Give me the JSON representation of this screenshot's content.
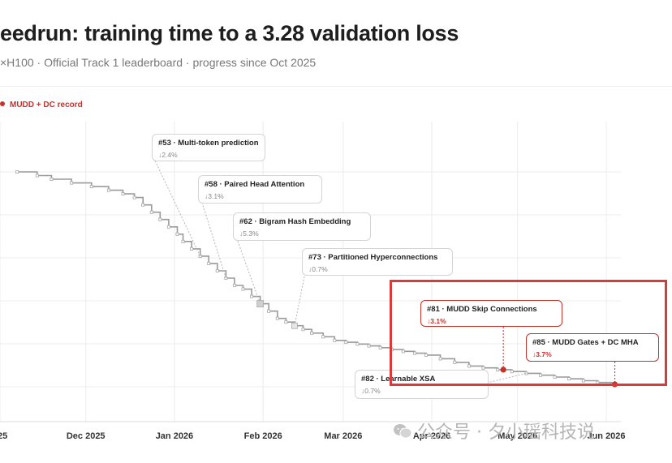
{
  "title": "eedrun: training time to a 3.28 validation loss",
  "subtitle": "×H100 · Official Track 1 leaderboard · progress since Oct 2025",
  "legend": {
    "label": "MUDD + DC record",
    "color": "#c8302a"
  },
  "watermark": "公众号 · 夕小瑶科技说",
  "colors": {
    "line": "#9a9a9a",
    "record": "#c8302a",
    "highlight": "#d93a3a",
    "grid": "#ececec"
  },
  "annotations": [
    {
      "title": "#53 · Multi-token prediction",
      "delta": "↓2.4%",
      "record": false
    },
    {
      "title": "#58 · Paired Head Attention",
      "delta": "↓3.1%",
      "record": false
    },
    {
      "title": "#62 · Bigram Hash Embedding",
      "delta": "↓5.3%",
      "record": false
    },
    {
      "title": "#73 · Partitioned Hyperconnections",
      "delta": "↓0.7%",
      "record": false
    },
    {
      "title": "#81 · MUDD Skip Connections",
      "delta": "↓3.1%",
      "record": true
    },
    {
      "title": "#85 · MUDD Gates + DC MHA",
      "delta": "↓3.7%",
      "record": true
    },
    {
      "title": "#82 · Learnable XSA",
      "delta": "↓0.7%",
      "record": false
    }
  ],
  "chart_data": {
    "type": "line",
    "title": "eedrun: training time to a 3.28 validation loss",
    "xlabel": "",
    "ylabel": "",
    "x_ticks": [
      "025",
      "Dec 2025",
      "Jan 2026",
      "Feb 2026",
      "Mar 2026",
      "Apr 2026",
      "May 2026",
      "Jun 2026"
    ],
    "grid": true,
    "legend_position": "top-left",
    "series": [
      {
        "name": "MUDD + DC record",
        "step": true,
        "x": [
          "2025-11-07",
          "2025-11-14",
          "2025-11-19",
          "2025-11-26",
          "2025-12-03",
          "2025-12-09",
          "2025-12-14",
          "2025-12-18",
          "2025-12-21",
          "2025-12-24",
          "2025-12-27",
          "2025-12-30",
          "2026-01-02",
          "2026-01-04",
          "2026-01-07",
          "2026-01-10",
          "2026-01-13",
          "2026-01-16",
          "2026-01-19",
          "2026-01-22",
          "2026-01-25",
          "2026-01-28",
          "2026-01-31",
          "2026-02-03",
          "2026-02-06",
          "2026-02-09",
          "2026-02-12",
          "2026-02-15",
          "2026-02-18",
          "2026-02-22",
          "2026-02-26",
          "2026-03-02",
          "2026-03-06",
          "2026-03-10",
          "2026-03-14",
          "2026-03-18",
          "2026-03-22",
          "2026-03-26",
          "2026-03-30",
          "2026-04-04",
          "2026-04-09",
          "2026-04-14",
          "2026-04-19",
          "2026-04-24",
          "2026-04-29",
          "2026-05-04",
          "2026-05-09",
          "2026-05-14",
          "2026-05-19",
          "2026-05-24",
          "2026-05-29",
          "2026-06-03"
        ],
        "values": [
          1.0,
          0.99,
          0.98,
          0.97,
          0.96,
          0.95,
          0.94,
          0.93,
          0.91,
          0.89,
          0.87,
          0.85,
          0.83,
          0.81,
          0.79,
          0.77,
          0.75,
          0.73,
          0.71,
          0.69,
          0.68,
          0.66,
          0.64,
          0.62,
          0.6,
          0.59,
          0.58,
          0.57,
          0.56,
          0.55,
          0.54,
          0.535,
          0.53,
          0.525,
          0.52,
          0.515,
          0.51,
          0.505,
          0.5,
          0.49,
          0.48,
          0.47,
          0.465,
          0.46,
          0.455,
          0.45,
          0.445,
          0.44,
          0.435,
          0.43,
          0.425,
          0.42
        ],
        "record_points": [
          {
            "label": "#81",
            "x": "2026-04-26",
            "value": 0.46
          },
          {
            "label": "#85",
            "x": "2026-06-04",
            "value": 0.42
          }
        ]
      }
    ]
  }
}
